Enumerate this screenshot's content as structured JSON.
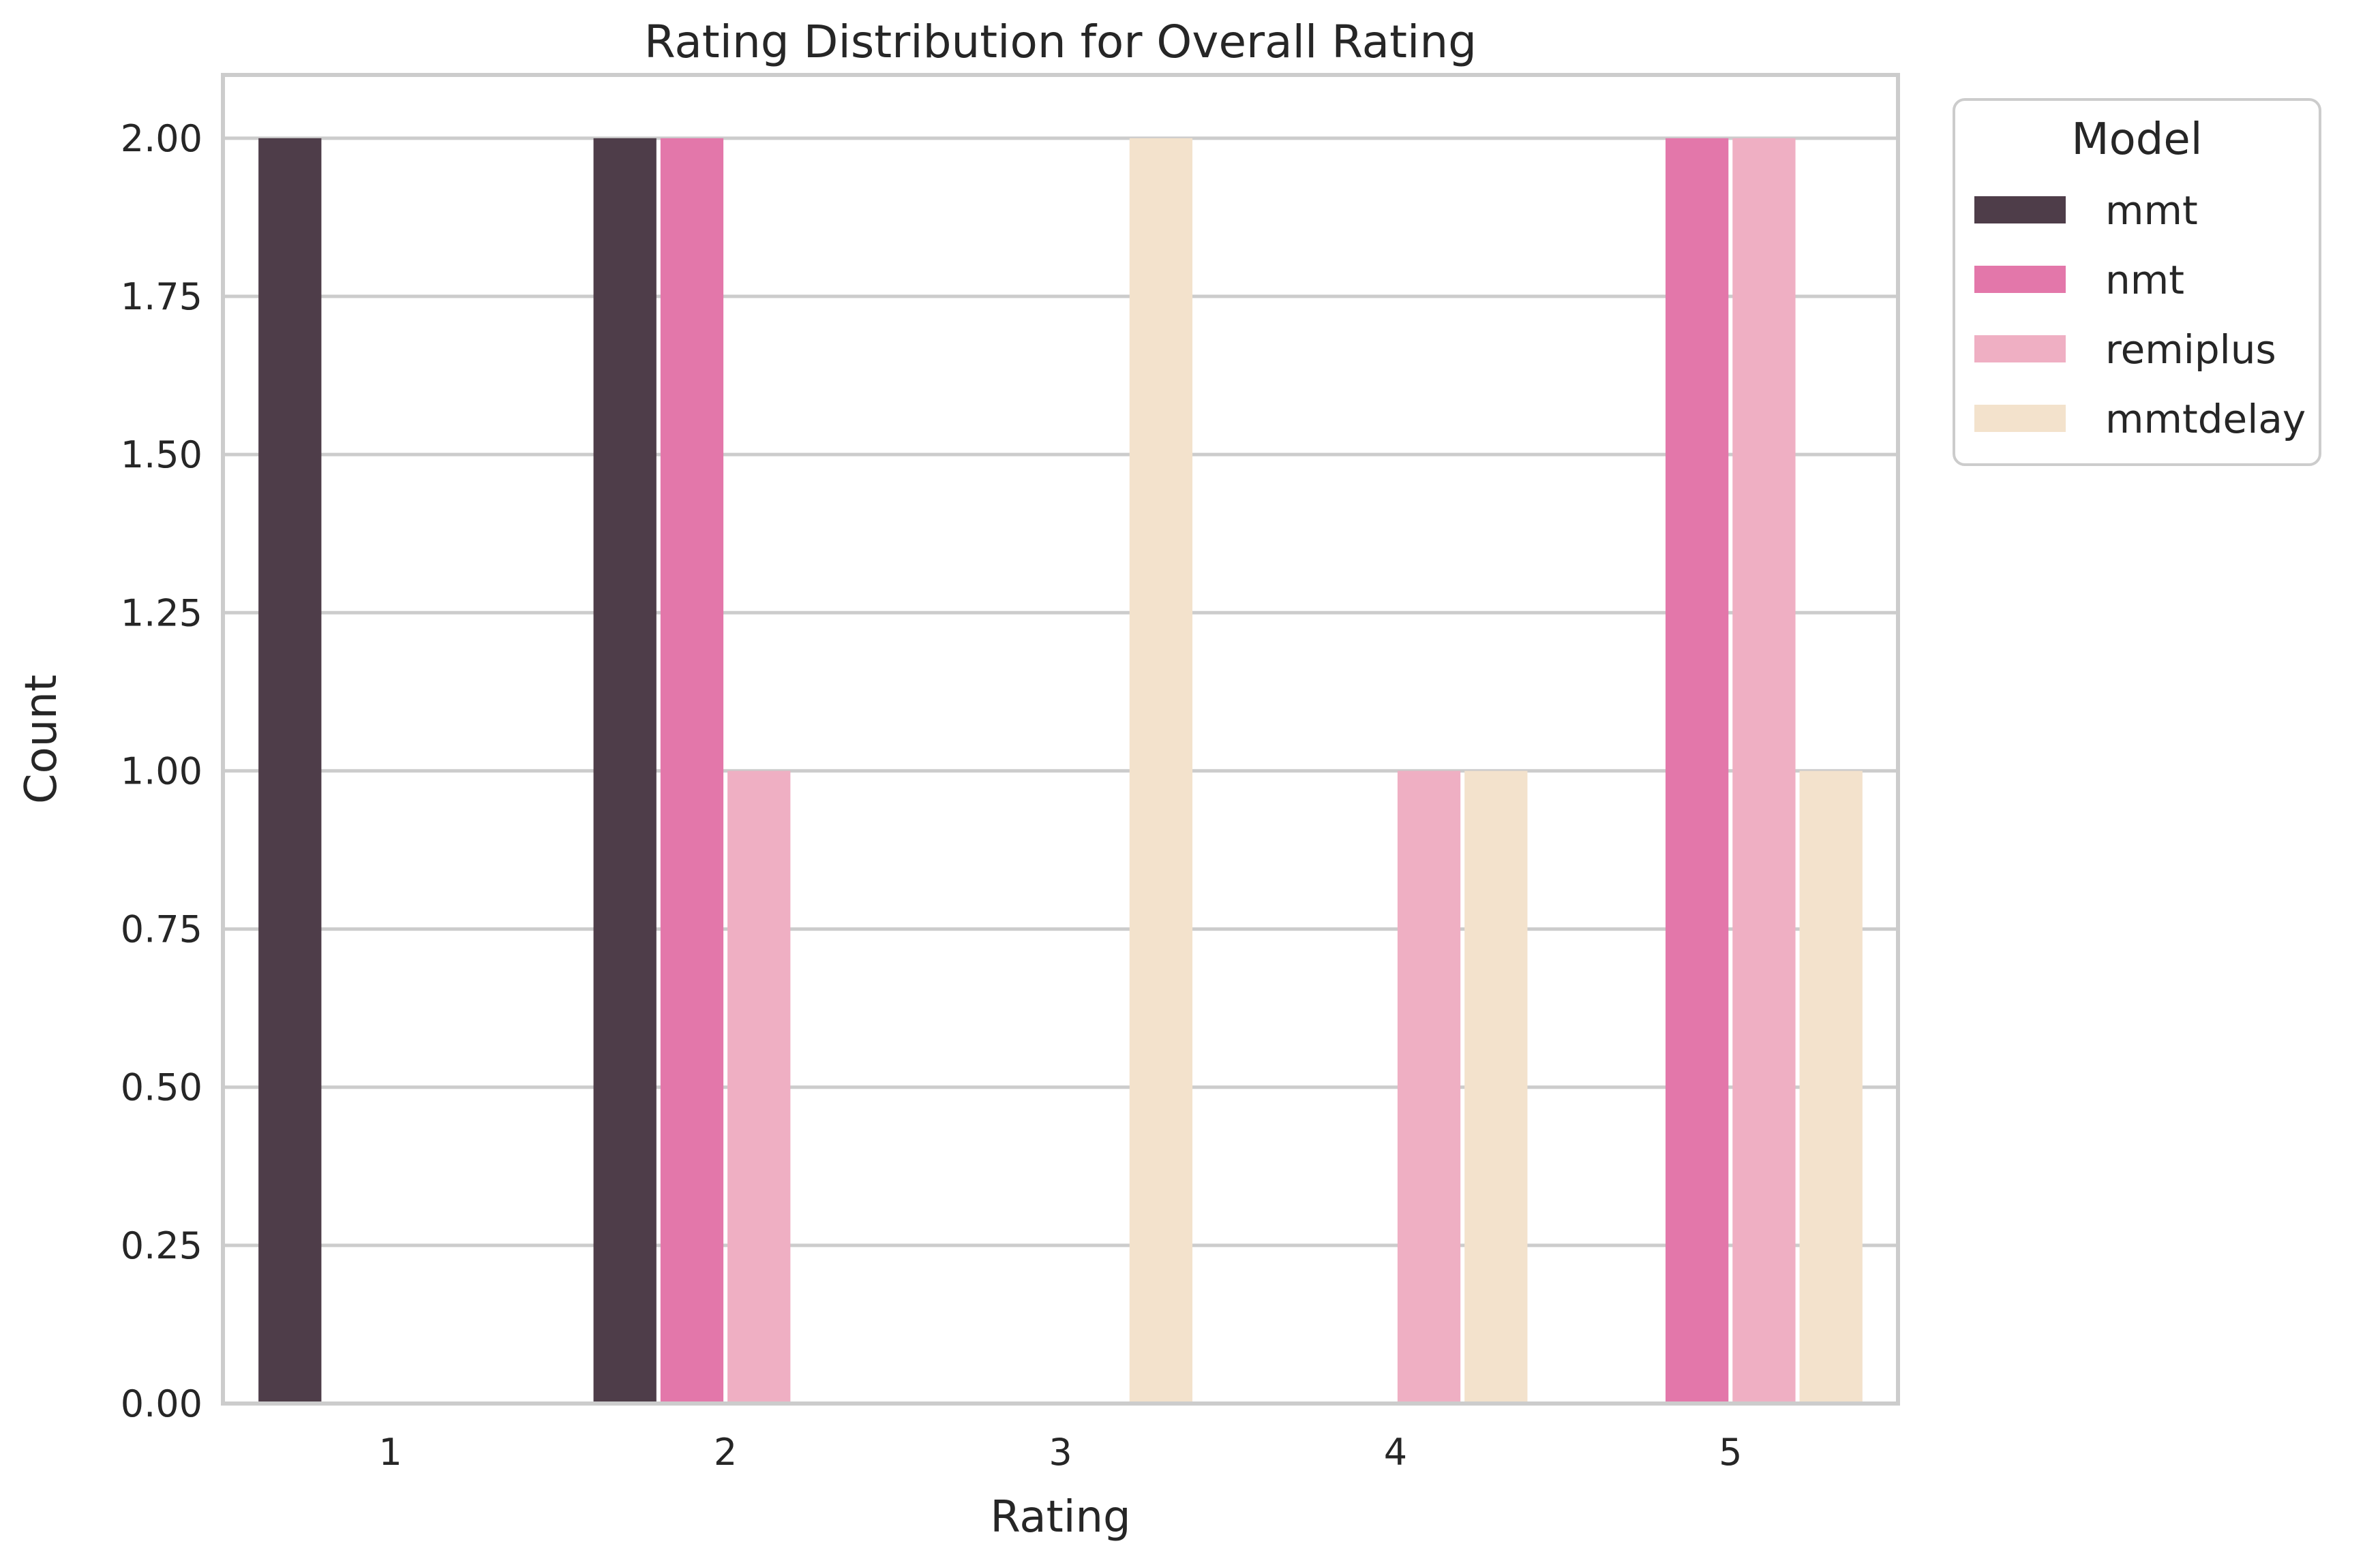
{
  "chart_data": {
    "type": "bar",
    "title": "Rating Distribution for Overall Rating",
    "xlabel": "Rating",
    "ylabel": "Count",
    "categories": [
      "1",
      "2",
      "3",
      "4",
      "5"
    ],
    "ylim": [
      0,
      2.1
    ],
    "yticks": [
      "0.00",
      "0.25",
      "0.50",
      "0.75",
      "1.00",
      "1.25",
      "1.50",
      "1.75",
      "2.00"
    ],
    "grid": true,
    "legend": {
      "title": "Model",
      "placement": "outside-top-right"
    },
    "series": [
      {
        "name": "mmt",
        "color": "#4e3d49",
        "values": [
          2,
          2,
          0,
          0,
          0
        ]
      },
      {
        "name": "nmt",
        "color": "#e377aa",
        "values": [
          0,
          2,
          0,
          0,
          2
        ]
      },
      {
        "name": "remiplus",
        "color": "#efafc3",
        "values": [
          0,
          1,
          0,
          1,
          2
        ]
      },
      {
        "name": "mmtdelay",
        "color": "#f3e2cc",
        "values": [
          0,
          0,
          2,
          1,
          1
        ]
      }
    ]
  }
}
